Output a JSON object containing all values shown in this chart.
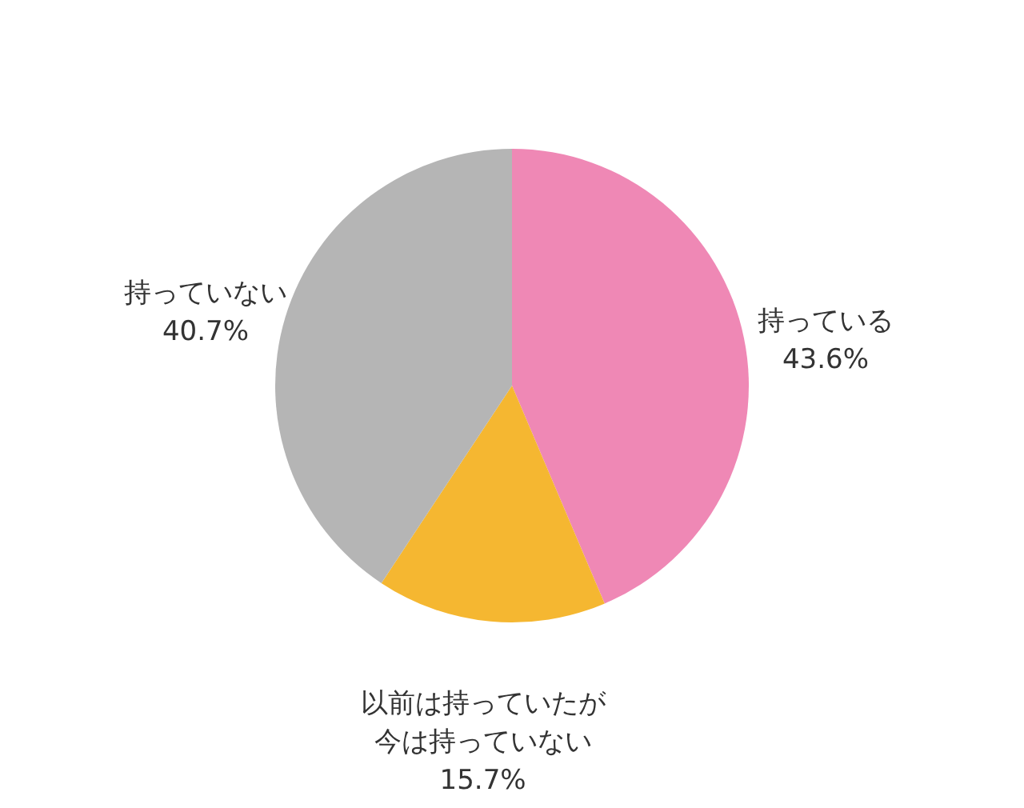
{
  "chart_data": {
    "type": "pie",
    "categories": [
      "持っている",
      "以前は持っていたが今は持っていない",
      "持っていない"
    ],
    "values": [
      43.6,
      15.7,
      40.7
    ],
    "value_labels": [
      "43.6%",
      "15.7%",
      "40.7%"
    ],
    "colors": [
      "#ef88b5",
      "#f5b731",
      "#b5b5b5"
    ],
    "legend": false
  }
}
